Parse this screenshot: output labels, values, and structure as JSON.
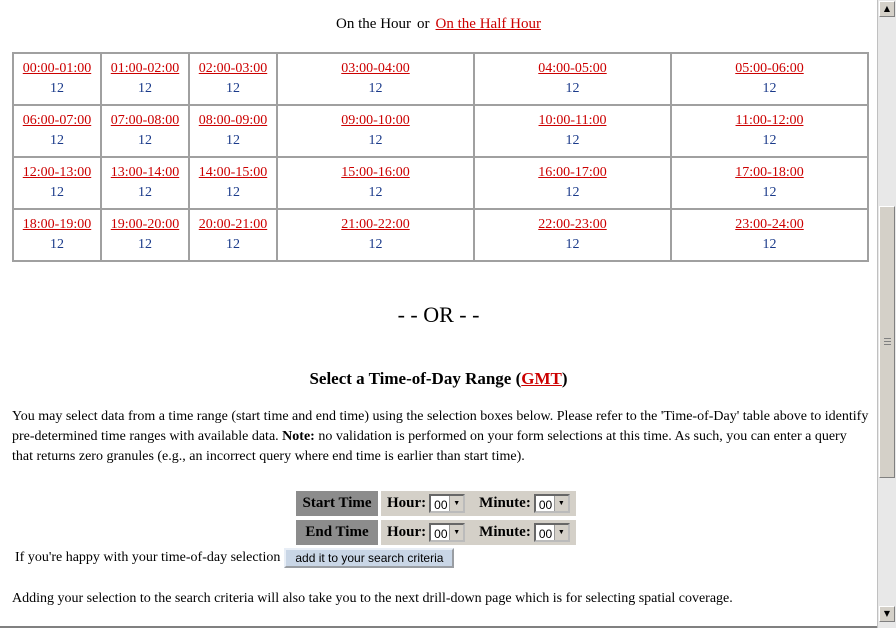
{
  "toggle": {
    "current": "On the Hour",
    "separator": "or",
    "alternate": "On the Half Hour"
  },
  "tod_rows": [
    [
      {
        "range": "00:00-01:00",
        "count": "12"
      },
      {
        "range": "01:00-02:00",
        "count": "12"
      },
      {
        "range": "02:00-03:00",
        "count": "12"
      },
      {
        "range": "03:00-04:00",
        "count": "12"
      },
      {
        "range": "04:00-05:00",
        "count": "12"
      },
      {
        "range": "05:00-06:00",
        "count": "12"
      }
    ],
    [
      {
        "range": "06:00-07:00",
        "count": "12"
      },
      {
        "range": "07:00-08:00",
        "count": "12"
      },
      {
        "range": "08:00-09:00",
        "count": "12"
      },
      {
        "range": "09:00-10:00",
        "count": "12"
      },
      {
        "range": "10:00-11:00",
        "count": "12"
      },
      {
        "range": "11:00-12:00",
        "count": "12"
      }
    ],
    [
      {
        "range": "12:00-13:00",
        "count": "12"
      },
      {
        "range": "13:00-14:00",
        "count": "12"
      },
      {
        "range": "14:00-15:00",
        "count": "12"
      },
      {
        "range": "15:00-16:00",
        "count": "12"
      },
      {
        "range": "16:00-17:00",
        "count": "12"
      },
      {
        "range": "17:00-18:00",
        "count": "12"
      }
    ],
    [
      {
        "range": "18:00-19:00",
        "count": "12"
      },
      {
        "range": "19:00-20:00",
        "count": "12"
      },
      {
        "range": "20:00-21:00",
        "count": "12"
      },
      {
        "range": "21:00-22:00",
        "count": "12"
      },
      {
        "range": "22:00-23:00",
        "count": "12"
      },
      {
        "range": "23:00-24:00",
        "count": "12"
      }
    ]
  ],
  "or_text": "- - OR - -",
  "section": {
    "title_prefix": "Select a Time-of-Day Range (",
    "title_link": "GMT",
    "title_suffix": ")"
  },
  "description": {
    "part1": "You may select data from a time range (start time and end time) using the selection boxes below. Please refer to the 'Time-of-Day' table above to identify pre-determined time ranges with available data.",
    "note_label": "Note:",
    "part2": "no validation is performed on your form selections at this time. As such, you can enter a query that returns zero granules (e.g., an incorrect query where end time is earlier than start time)."
  },
  "time_form": {
    "start_label": "Start Time",
    "end_label": "End Time",
    "hour_label": "Hour:",
    "minute_label": "Minute:",
    "start_hour": "00",
    "start_minute": "00",
    "end_hour": "00",
    "end_minute": "00"
  },
  "submit": {
    "prompt": "If you're happy with your time-of-day selection",
    "button_label": "add it to your search criteria"
  },
  "footer_note": "Adding your selection to the search criteria will also take you to the next drill-down page which is for selecting spatial coverage.",
  "icons": {
    "scroll_up": "triangle-up",
    "scroll_down": "triangle-down",
    "select_arrow": "triangle-down"
  },
  "colors": {
    "link": "#cc0000",
    "count": "#1a3a8a",
    "label_bg": "#8c8c8c",
    "button_bg": "#c9d6e6"
  }
}
